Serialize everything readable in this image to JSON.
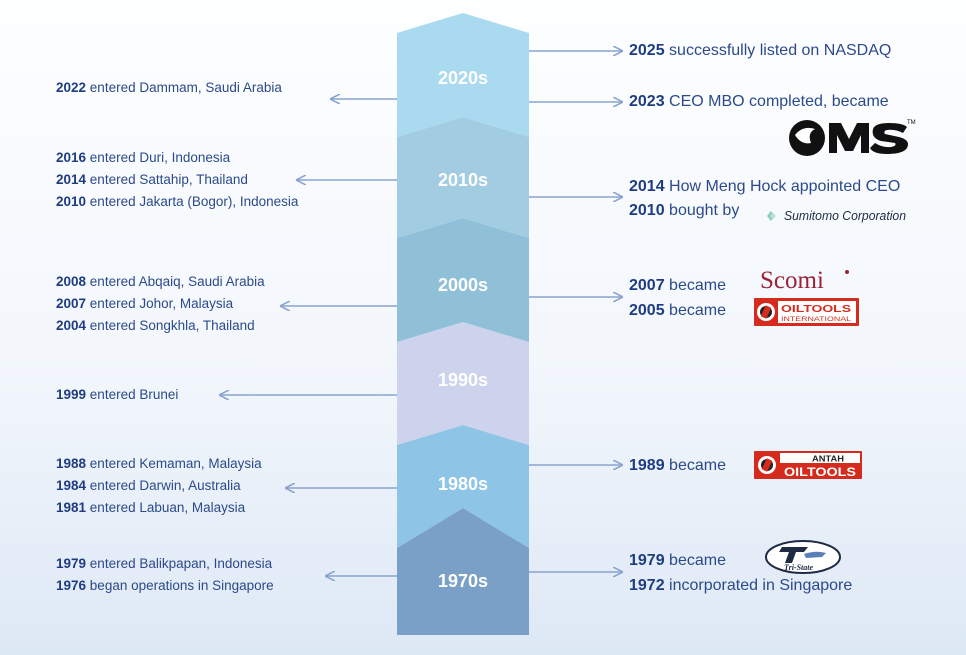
{
  "decades": [
    {
      "label": "2020s",
      "color": "#a9daf0"
    },
    {
      "label": "2010s",
      "color": "#a2cce2"
    },
    {
      "label": "2000s",
      "color": "#8fc0d8"
    },
    {
      "label": "1990s",
      "color": "#cdd3ec"
    },
    {
      "label": "1980s",
      "color": "#8ec4e6"
    },
    {
      "label": "1970s",
      "color": "#7aa0c8"
    }
  ],
  "left": [
    [
      {
        "year": "2022",
        "text": " entered Dammam, Saudi Arabia"
      }
    ],
    [
      {
        "year": "2016",
        "text": " entered Duri, Indonesia"
      },
      {
        "year": "2014",
        "text": " entered Sattahip, Thailand"
      },
      {
        "year": "2010",
        "text": " entered Jakarta (Bogor), Indonesia"
      }
    ],
    [
      {
        "year": "2008",
        "text": " entered Abqaiq, Saudi Arabia"
      },
      {
        "year": "2007",
        "text": " entered Johor, Malaysia"
      },
      {
        "year": "2004",
        "text": " entered  Songkhla, Thailand"
      }
    ],
    [
      {
        "year": "1999",
        "text": " entered Brunei"
      }
    ],
    [
      {
        "year": "1988",
        "text": " entered Kemaman, Malaysia"
      },
      {
        "year": "1984",
        "text": " entered Darwin, Australia"
      },
      {
        "year": "1981",
        "text": " entered Labuan, Malaysia"
      }
    ],
    [
      {
        "year": "1979",
        "text": " entered Balikpapan, Indonesia"
      },
      {
        "year": "1976",
        "text": " began operations in Singapore"
      }
    ]
  ],
  "right": [
    [
      {
        "year": "2025",
        "text": " successfully listed on NASDAQ"
      }
    ],
    [
      {
        "year": "2023",
        "text": " CEO MBO completed, became"
      }
    ],
    [
      {
        "year": "2014",
        "text": " How Meng Hock appointed CEO"
      },
      {
        "year": "2010",
        "text": " bought by"
      }
    ],
    [
      {
        "year": "2007",
        "text": " became"
      },
      {
        "year": "2005",
        "text": " became"
      }
    ],
    [
      {
        "year": "1989",
        "text": " became"
      }
    ],
    [
      {
        "year": "1979",
        "text": " became"
      },
      {
        "year": "1972",
        "text": "  incorporated in Singapore"
      }
    ]
  ],
  "logos": {
    "oms": "OMS",
    "oms_tm": "TM",
    "sumitomo": "Sumitomo Corporation",
    "scomi": "Scomi",
    "oiltools_main": "OILTOOLS",
    "oiltools_sub": "INTERNATIONAL",
    "antah_top": "ANTAH",
    "antah_main": "OILTOOLS",
    "tristate": "Tri-State"
  },
  "colors": {
    "text": "#2c4a8a",
    "year": "#1f3c82",
    "arrow": "#8aa4cf",
    "logo_red": "#d52b1e",
    "scomi": "#9b2335"
  }
}
